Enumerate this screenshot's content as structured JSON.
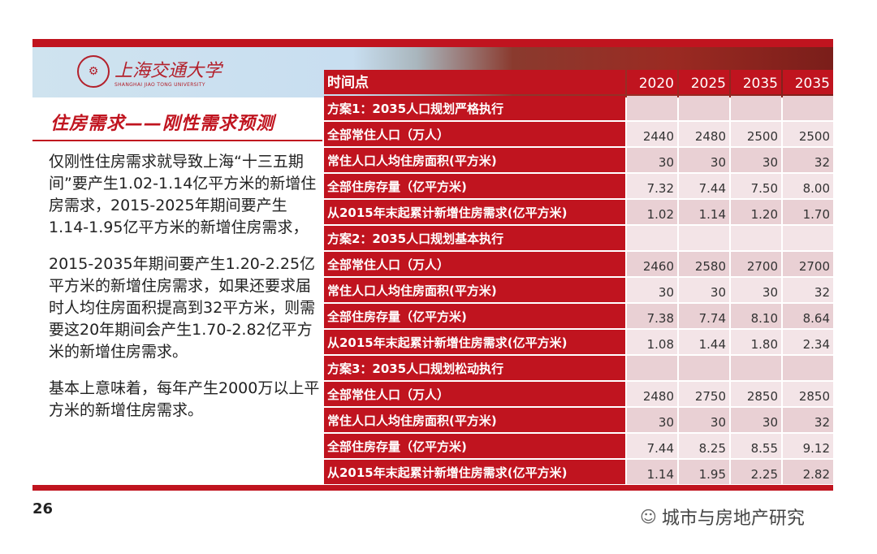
{
  "header": {
    "logo_cn": "上海交通大学",
    "logo_en": "SHANGHAI JIAO TONG UNIVERSITY",
    "title": "住房需求——刚性需求预测"
  },
  "body": {
    "paragraphs": [
      "仅刚性住房需求就导致上海“十三五期间”要产生1.02-1.14亿平方米的新增住房需求，2015-2025年期间要产生1.14-1.95亿平方米的新增住房需求，",
      "2015-2035年期间要产生1.20-2.25亿平方米的新增住房需求，如果还要求届时人均住房面积提高到32平方米，则需要这20年期间会产生1.70-2.82亿平方米的新增住房需求。",
      "基本上意味着，每年产生2000万以上平方米的新增住房需求。"
    ]
  },
  "table": {
    "header": [
      "时间点",
      "2020",
      "2025",
      "2035",
      "2035"
    ],
    "rows": [
      [
        "方案1：2035人口规划严格执行",
        "",
        "",
        "",
        ""
      ],
      [
        "全部常住人口（万人）",
        "2440",
        "2480",
        "2500",
        "2500"
      ],
      [
        "常住人口人均住房面积(平方米)",
        "30",
        "30",
        "30",
        "32"
      ],
      [
        "全部住房存量（亿平方米)",
        "7.32",
        "7.44",
        "7.50",
        "8.00"
      ],
      [
        "从2015年末起累计新增住房需求(亿平方米)",
        "1.02",
        "1.14",
        "1.20",
        "1.70"
      ],
      [
        "方案2：2035人口规划基本执行",
        "",
        "",
        "",
        ""
      ],
      [
        "全部常住人口（万人）",
        "2460",
        "2580",
        "2700",
        "2700"
      ],
      [
        "常住人口人均住房面积(平方米)",
        "30",
        "30",
        "30",
        "32"
      ],
      [
        "全部住房存量（亿平方米)",
        "7.38",
        "7.74",
        "8.10",
        "8.64"
      ],
      [
        "从2015年末起累计新增住房需求(亿平方米)",
        "1.08",
        "1.44",
        "1.80",
        "2.34"
      ],
      [
        "方案3：2035人口规划松动执行",
        "",
        "",
        "",
        ""
      ],
      [
        "全部常住人口（万人）",
        "2480",
        "2750",
        "2850",
        "2850"
      ],
      [
        "常住人口人均住房面积(平方米)",
        "30",
        "30",
        "30",
        "32"
      ],
      [
        "全部住房存量（亿平方米)",
        "7.44",
        "8.25",
        "8.55",
        "9.12"
      ],
      [
        "从2015年末起累计新增住房需求(亿平方米)",
        "1.14",
        "1.95",
        "2.25",
        "2.82"
      ]
    ]
  },
  "footer": {
    "page_number": "26",
    "watermark": "城市与房地产研究",
    "watermark_icon": "wechat-icon"
  },
  "colors": {
    "accent": "#c0141f",
    "row_odd": "#e9d0d4",
    "row_even": "#f3e4e7"
  }
}
